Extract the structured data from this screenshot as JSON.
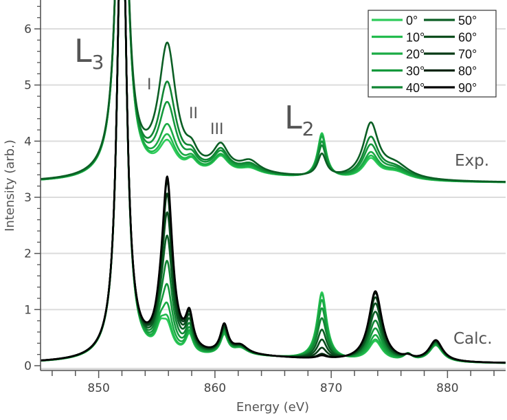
{
  "chart_data": {
    "type": "line",
    "xlabel": "Energy (eV)",
    "ylabel": "Intensity (arb.)",
    "xlim": [
      845,
      885
    ],
    "ylim": [
      0,
      6.5
    ],
    "xticks": [
      850,
      860,
      870,
      880
    ],
    "yticks": [
      0,
      1,
      2,
      3,
      4,
      5,
      6
    ],
    "grid": "horizontal",
    "legend_position": "top-right",
    "legend": [
      {
        "name": "0°",
        "color": "#2ecc5a"
      },
      {
        "name": "10°",
        "color": "#22bb4e"
      },
      {
        "name": "20°",
        "color": "#1aaa44"
      },
      {
        "name": "30°",
        "color": "#14993c"
      },
      {
        "name": "40°",
        "color": "#108533"
      },
      {
        "name": "50°",
        "color": "#0b5e24"
      },
      {
        "name": "60°",
        "color": "#094d1d"
      },
      {
        "name": "70°",
        "color": "#063a15"
      },
      {
        "name": "80°",
        "color": "#03230c"
      },
      {
        "name": "90°",
        "color": "#000000"
      }
    ],
    "annotations": {
      "l3_main": "L",
      "l3_sub": "3",
      "l2_main": "L",
      "l2_sub": "2",
      "peak1": "I",
      "peak2": "II",
      "peak3": "III",
      "exp": "Exp.",
      "calc": "Calc."
    },
    "datasets": [
      {
        "label": "Exp.",
        "series_angles": [
          "0°",
          "10°",
          "20°",
          "30°",
          "40°",
          "50°"
        ],
        "baseline": 3.25,
        "peaks": [
          {
            "energy": 852.0,
            "fwhm": 1.0,
            "amp": [
              8,
              8,
              8,
              8,
              8,
              8
            ]
          },
          {
            "energy": 855.9,
            "fwhm": 1.8,
            "amp": [
              0.55,
              0.65,
              0.83,
              1.22,
              1.58,
              2.27
            ]
          },
          {
            "energy": 858.0,
            "fwhm": 1.2,
            "amp": [
              0.2,
              0.2,
              0.21,
              0.22,
              0.23,
              0.25
            ]
          },
          {
            "energy": 860.5,
            "fwhm": 1.6,
            "amp": [
              0.3,
              0.31,
              0.32,
              0.36,
              0.39,
              0.45
            ]
          },
          {
            "energy": 863.0,
            "fwhm": 2.0,
            "amp": [
              0.1,
              0.11,
              0.12,
              0.14,
              0.16,
              0.2
            ]
          },
          {
            "energy": 862.0,
            "fwhm": 14.0,
            "amp": [
              0.12,
              0.12,
              0.12,
              0.12,
              0.12,
              0.12
            ]
          },
          {
            "energy": 869.2,
            "fwhm": 0.9,
            "amp": [
              0.8,
              0.78,
              0.74,
              0.64,
              0.56,
              0.4
            ]
          },
          {
            "energy": 873.4,
            "fwhm": 1.6,
            "amp": [
              0.35,
              0.39,
              0.45,
              0.58,
              0.71,
              0.95
            ]
          },
          {
            "energy": 875.5,
            "fwhm": 3.0,
            "amp": [
              0.15,
              0.16,
              0.17,
              0.19,
              0.21,
              0.25
            ]
          }
        ]
      },
      {
        "label": "Calc.",
        "series_angles": [
          "0°",
          "10°",
          "20°",
          "30°",
          "40°",
          "50°",
          "60°",
          "70°",
          "80°",
          "90°"
        ],
        "baseline": 0.03,
        "peaks": [
          {
            "energy": 852.0,
            "fwhm": 0.9,
            "amp": [
              9,
              9,
              9,
              9,
              9,
              9,
              9,
              9,
              9,
              9
            ]
          },
          {
            "energy": 855.9,
            "fwhm": 1.1,
            "amp": [
              0.45,
              0.53,
              0.76,
              1.1,
              1.52,
              1.98,
              2.4,
              2.74,
              2.97,
              3.05
            ]
          },
          {
            "energy": 855.3,
            "fwhm": 0.9,
            "amp": [
              0.35,
              0.35,
              0.33,
              0.31,
              0.29,
              0.26,
              0.24,
              0.22,
              0.2,
              0.2
            ]
          },
          {
            "energy": 857.8,
            "fwhm": 0.8,
            "amp": [
              0.35,
              0.36,
              0.38,
              0.41,
              0.45,
              0.5,
              0.54,
              0.57,
              0.59,
              0.6
            ]
          },
          {
            "energy": 860.8,
            "fwhm": 0.8,
            "amp": [
              0.35,
              0.35,
              0.37,
              0.39,
              0.41,
              0.44,
              0.46,
              0.48,
              0.5,
              0.5
            ]
          },
          {
            "energy": 862.2,
            "fwhm": 1.5,
            "amp": [
              0.12,
              0.12,
              0.12,
              0.13,
              0.13,
              0.14,
              0.14,
              0.15,
              0.15,
              0.15
            ]
          },
          {
            "energy": 862.0,
            "fwhm": 14.0,
            "amp": [
              0.12,
              0.12,
              0.12,
              0.12,
              0.12,
              0.12,
              0.12,
              0.12,
              0.12,
              0.12
            ]
          },
          {
            "energy": 869.2,
            "fwhm": 1.0,
            "amp": [
              1.2,
              1.17,
              1.06,
              0.91,
              0.73,
              0.52,
              0.34,
              0.19,
              0.08,
              0.05
            ]
          },
          {
            "energy": 873.8,
            "fwhm": 1.4,
            "amp": [
              0.35,
              0.38,
              0.46,
              0.58,
              0.72,
              0.88,
              1.03,
              1.14,
              1.22,
              1.25
            ]
          },
          {
            "energy": 876.6,
            "fwhm": 0.9,
            "amp": [
              0.12,
              0.12,
              0.11,
              0.1,
              0.09,
              0.08,
              0.07,
              0.06,
              0.05,
              0.05
            ]
          },
          {
            "energy": 879.0,
            "fwhm": 1.4,
            "amp": [
              0.3,
              0.3,
              0.31,
              0.32,
              0.33,
              0.35,
              0.36,
              0.37,
              0.38,
              0.38
            ]
          }
        ]
      }
    ]
  }
}
